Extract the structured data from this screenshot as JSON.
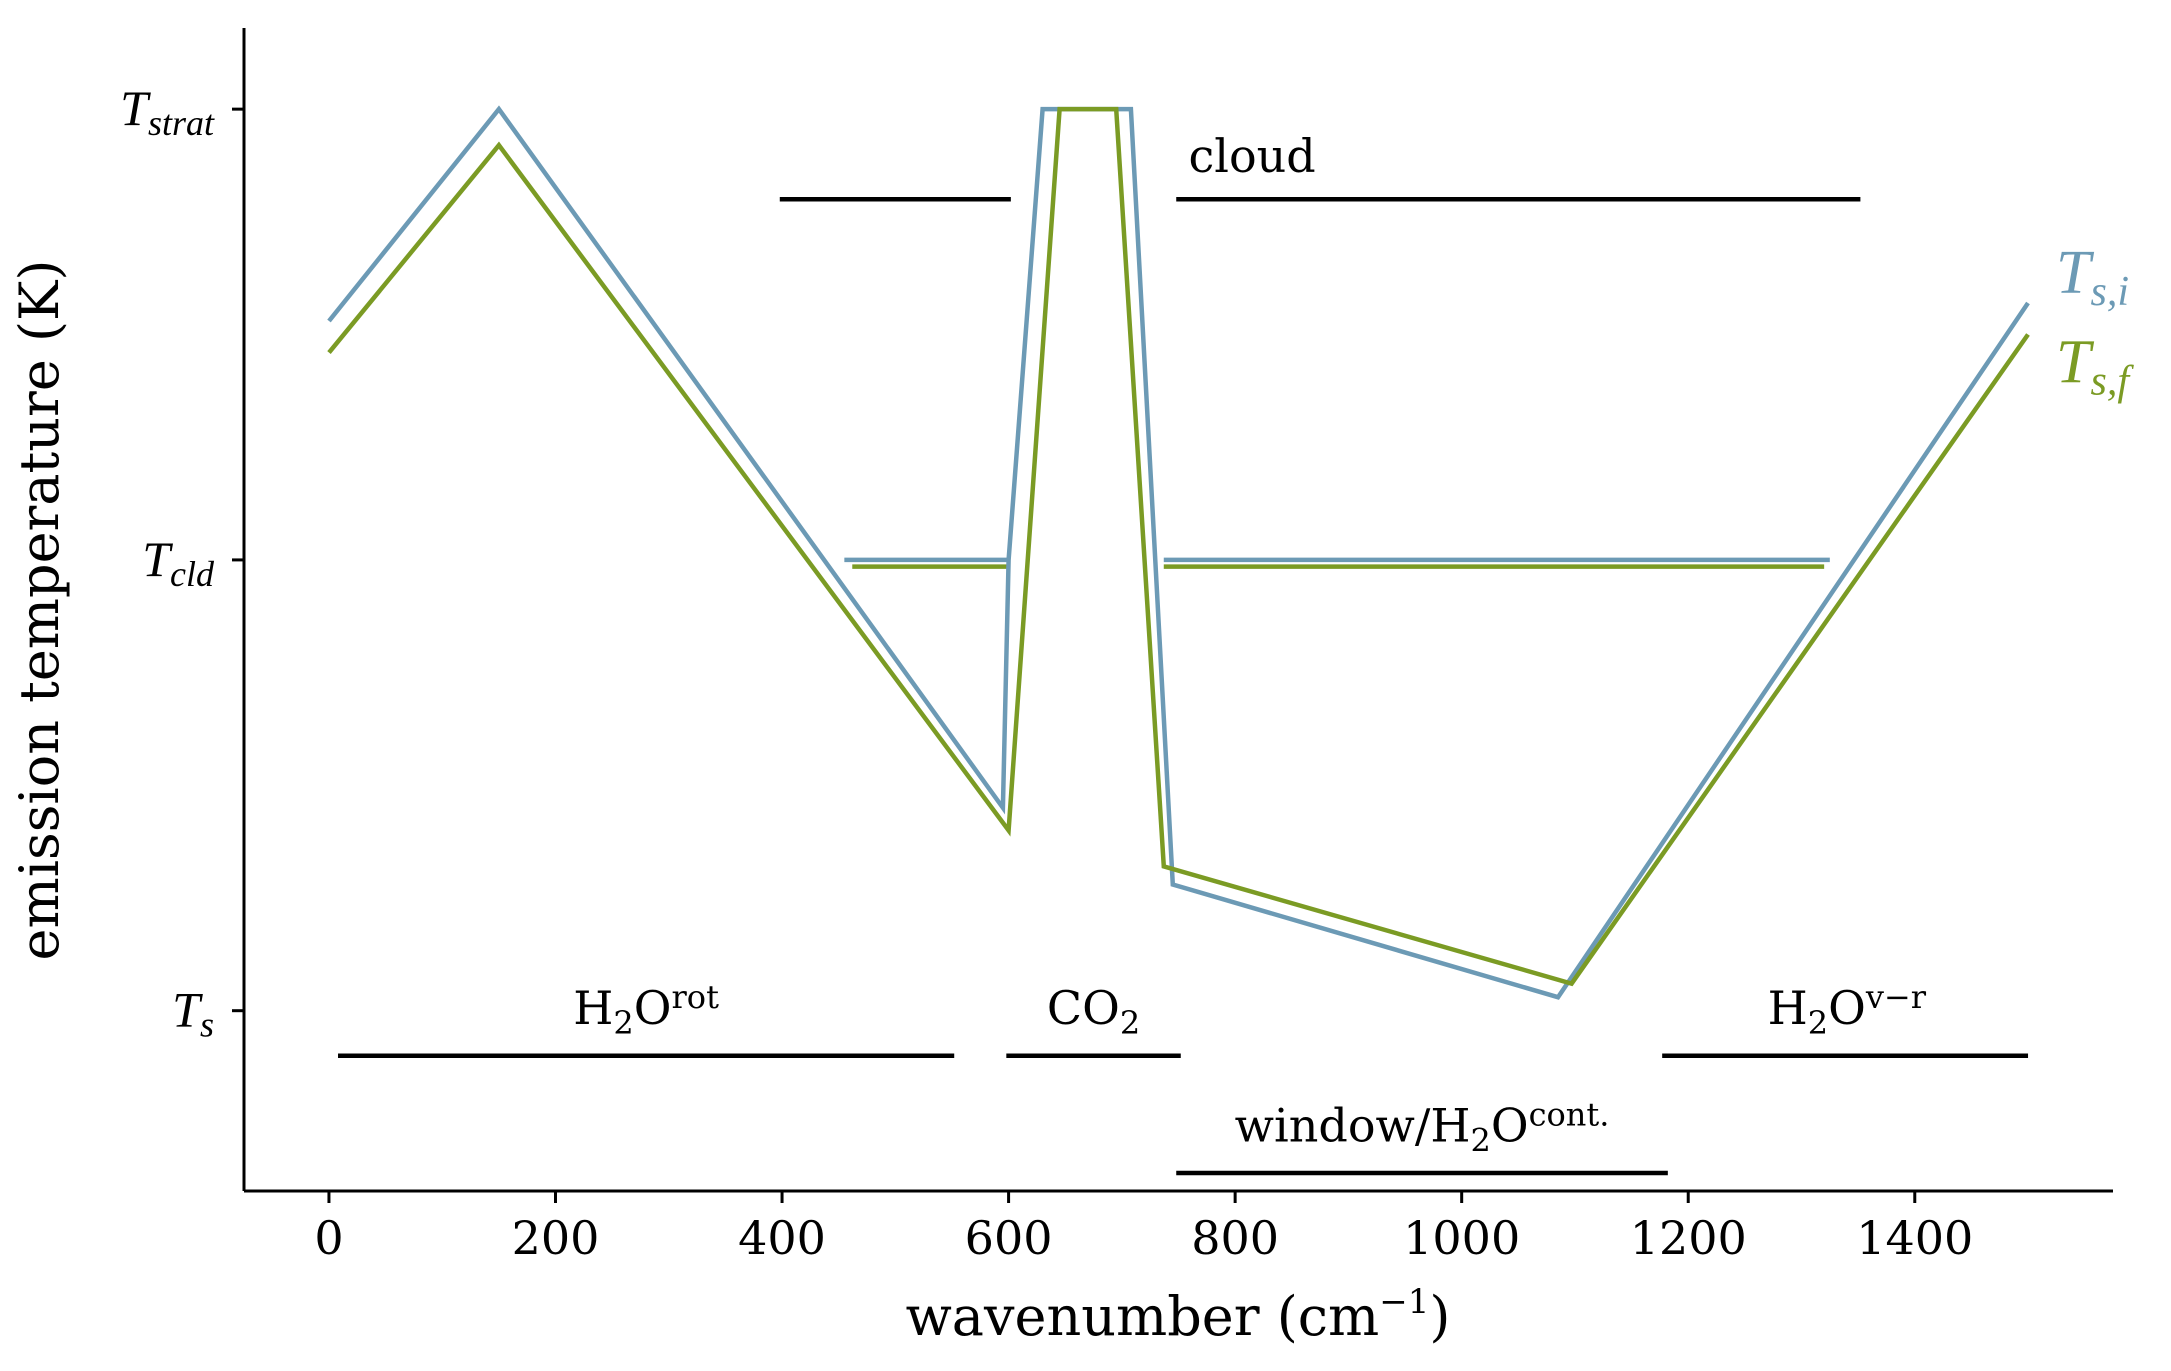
{
  "chart_data": {
    "type": "line",
    "xlabel": "wavenumber (cm",
    "xlabel_sup": "−1",
    "xlabel_end": ")",
    "ylabel": "emission temperature (K)",
    "xlim": [
      -75,
      1575
    ],
    "ylim": [
      -0.4,
      2.18
    ],
    "xticks": [
      0,
      200,
      400,
      600,
      800,
      1000,
      1200,
      1400
    ],
    "yticks": [
      {
        "value": 0,
        "base": "T",
        "sub": "s"
      },
      {
        "value": 1,
        "base": "T",
        "sub": "cld"
      },
      {
        "value": 2,
        "base": "T",
        "sub": "strat"
      }
    ],
    "series": [
      {
        "name": "T_s,i",
        "label_base": "T",
        "label_sub": "s,i",
        "color": "#6c9ab5",
        "x": [
          0,
          150,
          595,
          600,
          630,
          708,
          745,
          1085,
          1500
        ],
        "y": [
          1.53,
          2.0,
          0.45,
          1.0,
          2.0,
          2.0,
          0.28,
          0.03,
          1.57
        ]
      },
      {
        "name": "T_s,f",
        "label_base": "T",
        "label_sub": "s,f",
        "color": "#7b9b24",
        "x": [
          0,
          150,
          600,
          645,
          695,
          737,
          1097,
          1500
        ],
        "y": [
          1.46,
          1.92,
          0.4,
          2.0,
          2.0,
          0.32,
          0.06,
          1.5
        ]
      }
    ],
    "cloud_lines": [
      {
        "color": "#6c9ab5",
        "y": 1.0,
        "segments": [
          [
            455,
            600
          ],
          [
            737,
            1325
          ]
        ]
      },
      {
        "color": "#7b9b24",
        "y": 0.985,
        "segments": [
          [
            462,
            600
          ],
          [
            737,
            1320
          ]
        ]
      }
    ],
    "bands": [
      {
        "name": "cloud",
        "text": "cloud",
        "x_start": 398,
        "x_end": 602,
        "y": 1.8,
        "label_x": 815,
        "label_y": 1.86
      },
      {
        "name": "cloud-2",
        "text": "",
        "x_start": 748,
        "x_end": 1352,
        "y": 1.8
      },
      {
        "name": "h2o-rot",
        "text": "H",
        "sub": "2",
        "mid": "O",
        "sup": "rot",
        "x_start": 8,
        "x_end": 552,
        "y": -0.1,
        "label_x": 280,
        "label_y": -0.03
      },
      {
        "name": "co2",
        "text": "CO",
        "sub": "2",
        "x_start": 598,
        "x_end": 752,
        "y": -0.1,
        "label_x": 675,
        "label_y": -0.03
      },
      {
        "name": "h2o-vr",
        "text": "H",
        "sub": "2",
        "mid": "O",
        "sup": "v−r",
        "x_start": 1177,
        "x_end": 1500,
        "y": -0.1,
        "label_x": 1340,
        "label_y": -0.03
      },
      {
        "name": "window",
        "text": "window/H",
        "sub": "2",
        "mid": "O",
        "sup": "cont.",
        "x_start": 748,
        "x_end": 1182,
        "y": -0.36,
        "label_x": 965,
        "label_y": -0.29
      }
    ]
  }
}
